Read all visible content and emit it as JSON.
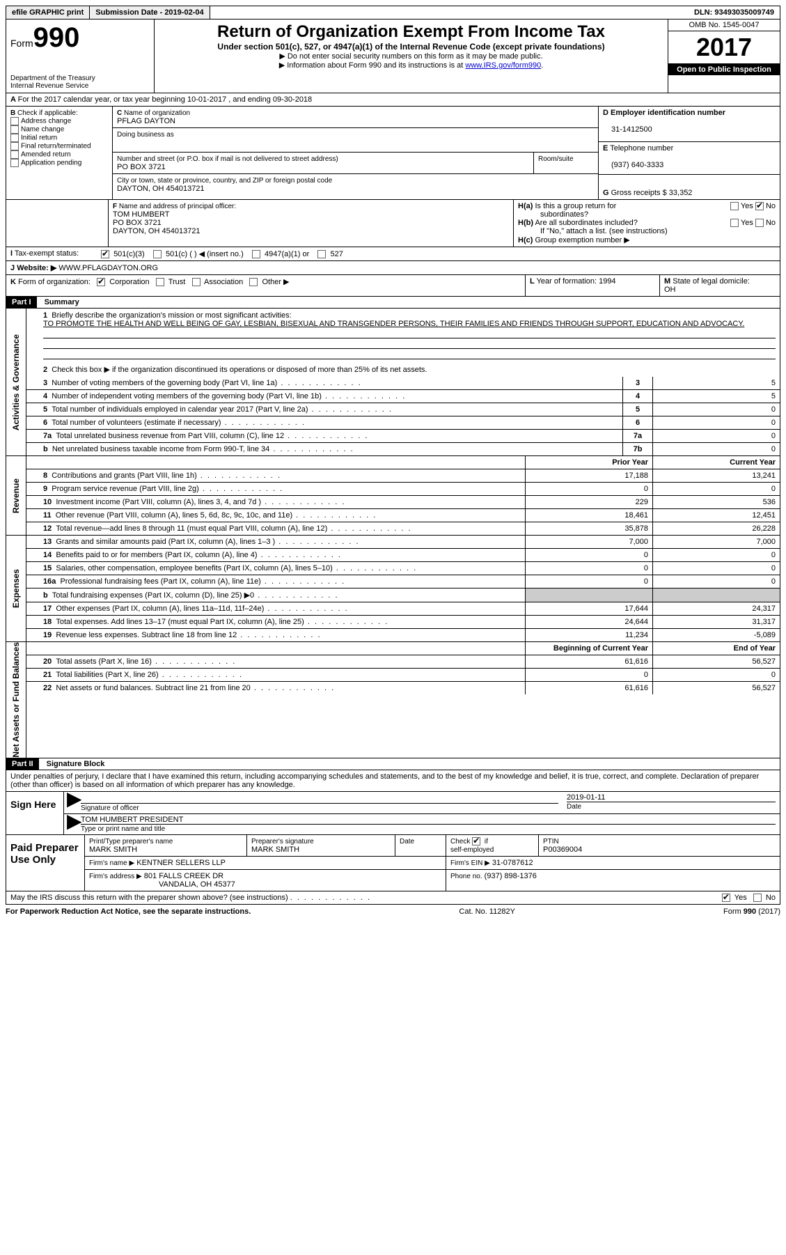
{
  "topbar": {
    "efile": "efile GRAPHIC print",
    "submission": "Submission Date - 2019-02-04",
    "dln": "DLN: 93493035009749"
  },
  "header": {
    "form_prefix": "Form",
    "form_no": "990",
    "dept": "Department of the Treasury",
    "irs": "Internal Revenue Service",
    "title": "Return of Organization Exempt From Income Tax",
    "sub1": "Under section 501(c), 527, or 4947(a)(1) of the Internal Revenue Code (except private foundations)",
    "sub2": "▶ Do not enter social security numbers on this form as it may be made public.",
    "sub3_pre": "▶ Information about Form 990 and its instructions is at ",
    "sub3_link": "www.IRS.gov/form990",
    "omb": "OMB No. 1545-0047",
    "year": "2017",
    "open": "Open to Public Inspection"
  },
  "A": {
    "text": "For the 2017 calendar year, or tax year beginning 10-01-2017   , and ending 09-30-2018"
  },
  "B": {
    "label": "Check if applicable:",
    "items": [
      "Address change",
      "Name change",
      "Initial return",
      "Final return/terminated",
      "Amended return",
      "Application pending"
    ]
  },
  "C": {
    "name_lbl": "Name of organization",
    "name": "PFLAG DAYTON",
    "dba_lbl": "Doing business as",
    "dba": "",
    "street_lbl": "Number and street (or P.O. box if mail is not delivered to street address)",
    "room_lbl": "Room/suite",
    "street": "PO BOX 3721",
    "city_lbl": "City or town, state or province, country, and ZIP or foreign postal code",
    "city": "DAYTON, OH  454013721"
  },
  "D": {
    "lbl": "Employer identification number",
    "val": "31-1412500"
  },
  "E": {
    "lbl": "Telephone number",
    "val": "(937) 640-3333"
  },
  "G": {
    "lbl": "Gross receipts $",
    "val": "33,352"
  },
  "F": {
    "lbl": "Name and address of principal officer:",
    "l1": "TOM HUMBERT",
    "l2": "PO BOX 3721",
    "l3": "DAYTON, OH  454013721"
  },
  "H": {
    "a": "Is this a group return for",
    "a2": "subordinates?",
    "b": "Are all subordinates included?",
    "note": "If \"No,\" attach a list. (see instructions)",
    "c": "Group exemption number ▶"
  },
  "I": {
    "lbl": "Tax-exempt status:",
    "opts": [
      "501(c)(3)",
      "501(c) (   ) ◀ (insert no.)",
      "4947(a)(1) or",
      "527"
    ]
  },
  "J": {
    "lbl": "Website: ▶",
    "val": "WWW.PFLAGDAYTON.ORG"
  },
  "K": {
    "lbl": "Form of organization:",
    "opts": [
      "Corporation",
      "Trust",
      "Association",
      "Other ▶"
    ]
  },
  "L": {
    "lbl": "Year of formation:",
    "val": "1994"
  },
  "M": {
    "lbl": "State of legal domicile:",
    "val": "OH"
  },
  "part1": {
    "bar": "Part I",
    "title": "Summary"
  },
  "summary": {
    "l1_lbl": "Briefly describe the organization's mission or most significant activities:",
    "l1_txt": "TO PROMOTE THE HEALTH AND WELL BEING OF GAY, LESBIAN, BISEXUAL AND TRANSGENDER PERSONS, THEIR FAMILIES AND FRIENDS THROUGH SUPPORT, EDUCATION AND ADVOCACY.",
    "l2": "Check this box ▶      if the organization discontinued its operations or disposed of more than 25% of its net assets.",
    "rows_gov": [
      {
        "n": "3",
        "t": "Number of voting members of the governing body (Part VI, line 1a)",
        "k": "3",
        "v": "5"
      },
      {
        "n": "4",
        "t": "Number of independent voting members of the governing body (Part VI, line 1b)",
        "k": "4",
        "v": "5"
      },
      {
        "n": "5",
        "t": "Total number of individuals employed in calendar year 2017 (Part V, line 2a)",
        "k": "5",
        "v": "0"
      },
      {
        "n": "6",
        "t": "Total number of volunteers (estimate if necessary)",
        "k": "6",
        "v": "0"
      },
      {
        "n": "7a",
        "t": "Total unrelated business revenue from Part VIII, column (C), line 12",
        "k": "7a",
        "v": "0"
      },
      {
        "n": "b",
        "t": "Net unrelated business taxable income from Form 990-T, line 34",
        "k": "7b",
        "v": "0"
      }
    ],
    "hdr_prior": "Prior Year",
    "hdr_curr": "Current Year",
    "rows_rev": [
      {
        "n": "8",
        "t": "Contributions and grants (Part VIII, line 1h)",
        "p": "17,188",
        "c": "13,241"
      },
      {
        "n": "9",
        "t": "Program service revenue (Part VIII, line 2g)",
        "p": "0",
        "c": "0"
      },
      {
        "n": "10",
        "t": "Investment income (Part VIII, column (A), lines 3, 4, and 7d )",
        "p": "229",
        "c": "536"
      },
      {
        "n": "11",
        "t": "Other revenue (Part VIII, column (A), lines 5, 6d, 8c, 9c, 10c, and 11e)",
        "p": "18,461",
        "c": "12,451"
      },
      {
        "n": "12",
        "t": "Total revenue—add lines 8 through 11 (must equal Part VIII, column (A), line 12)",
        "p": "35,878",
        "c": "26,228"
      }
    ],
    "rows_exp": [
      {
        "n": "13",
        "t": "Grants and similar amounts paid (Part IX, column (A), lines 1–3 )",
        "p": "7,000",
        "c": "7,000"
      },
      {
        "n": "14",
        "t": "Benefits paid to or for members (Part IX, column (A), line 4)",
        "p": "0",
        "c": "0"
      },
      {
        "n": "15",
        "t": "Salaries, other compensation, employee benefits (Part IX, column (A), lines 5–10)",
        "p": "0",
        "c": "0"
      },
      {
        "n": "16a",
        "t": "Professional fundraising fees (Part IX, column (A), line 11e)",
        "p": "0",
        "c": "0"
      },
      {
        "n": "b",
        "t": "Total fundraising expenses (Part IX, column (D), line 25) ▶0",
        "p": "__GREY__",
        "c": "__GREY__"
      },
      {
        "n": "17",
        "t": "Other expenses (Part IX, column (A), lines 11a–11d, 11f–24e)",
        "p": "17,644",
        "c": "24,317"
      },
      {
        "n": "18",
        "t": "Total expenses. Add lines 13–17 (must equal Part IX, column (A), line 25)",
        "p": "24,644",
        "c": "31,317"
      },
      {
        "n": "19",
        "t": "Revenue less expenses. Subtract line 18 from line 12",
        "p": "11,234",
        "c": "-5,089"
      }
    ],
    "hdr_boy": "Beginning of Current Year",
    "hdr_eoy": "End of Year",
    "rows_net": [
      {
        "n": "20",
        "t": "Total assets (Part X, line 16)",
        "p": "61,616",
        "c": "56,527"
      },
      {
        "n": "21",
        "t": "Total liabilities (Part X, line 26)",
        "p": "0",
        "c": "0"
      },
      {
        "n": "22",
        "t": "Net assets or fund balances. Subtract line 21 from line 20",
        "p": "61,616",
        "c": "56,527"
      }
    ],
    "vlabels": {
      "gov": "Activities & Governance",
      "rev": "Revenue",
      "exp": "Expenses",
      "net": "Net Assets or Fund Balances"
    }
  },
  "part2": {
    "bar": "Part II",
    "title": "Signature Block",
    "decl": "Under penalties of perjury, I declare that I have examined this return, including accompanying schedules and statements, and to the best of my knowledge and belief, it is true, correct, and complete. Declaration of preparer (other than officer) is based on all information of which preparer has any knowledge."
  },
  "sign": {
    "here": "Sign Here",
    "sig_lbl": "Signature of officer",
    "date_lbl": "Date",
    "date": "2019-01-11",
    "name": "TOM HUMBERT PRESIDENT",
    "name_lbl": "Type or print name and title"
  },
  "prep": {
    "here": "Paid Preparer Use Only",
    "pname_lbl": "Print/Type preparer's name",
    "pname": "MARK SMITH",
    "psig_lbl": "Preparer's signature",
    "psig": "MARK SMITH",
    "pdate_lbl": "Date",
    "check_lbl": "Check         if self-employed",
    "ptin_lbl": "PTIN",
    "ptin": "P00369004",
    "firm_lbl": "Firm's name    ▶",
    "firm": "KENTNER SELLERS LLP",
    "ein_lbl": "Firm's EIN ▶",
    "ein": "31-0787612",
    "addr_lbl": "Firm's address ▶",
    "addr1": "801 FALLS CREEK DR",
    "addr2": "VANDALIA, OH  45377",
    "phone_lbl": "Phone no.",
    "phone": "(937) 898-1376"
  },
  "discuss": "May the IRS discuss this return with the preparer shown above? (see instructions)",
  "footer": {
    "l": "For Paperwork Reduction Act Notice, see the separate instructions.",
    "m": "Cat. No. 11282Y",
    "r": "Form 990 (2017)"
  }
}
